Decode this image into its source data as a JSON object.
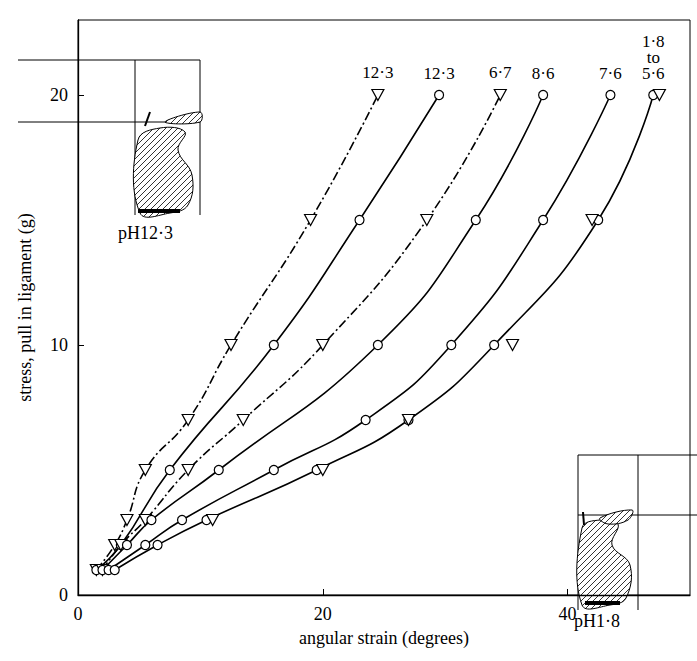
{
  "chart_data": {
    "type": "line",
    "x_label": "angular strain (degrees)",
    "y_label": "stress, pull in ligament (g)",
    "xlim": [
      0,
      50
    ],
    "xticks": [
      0,
      20,
      40
    ],
    "ylim": [
      0,
      23
    ],
    "yticks": [
      0,
      10,
      20
    ],
    "grid": false,
    "color": "#000000",
    "series": [
      {
        "name": "12·3",
        "marker": "triangle",
        "line_style": "dashdot",
        "x": [
          1.5,
          3,
          4,
          5.5,
          9,
          12.5,
          19,
          24.5
        ],
        "values": [
          1,
          2,
          3,
          5,
          7,
          10,
          15,
          20
        ]
      },
      {
        "name": "12·3",
        "marker": "circle",
        "line_style": "solid",
        "x": [
          1.5,
          3.5,
          7.5,
          16,
          23,
          29.5
        ],
        "values": [
          1,
          2,
          5,
          10,
          15,
          20
        ]
      },
      {
        "name": "6·7",
        "marker": "triangle",
        "line_style": "dashdot",
        "x": [
          2,
          3.5,
          5.5,
          9,
          13.5,
          20,
          28.5,
          34.5
        ],
        "values": [
          1,
          2,
          3,
          5,
          7,
          10,
          15,
          20
        ]
      },
      {
        "name": "8·6",
        "marker": "circle",
        "line_style": "solid",
        "x": [
          2,
          4,
          6,
          11.5,
          24.5,
          32.5,
          38
        ],
        "values": [
          1,
          2,
          3,
          5,
          10,
          15,
          20
        ]
      },
      {
        "name": "7·6",
        "marker": "circle",
        "line_style": "solid",
        "x": [
          2.5,
          5.5,
          8.5,
          16,
          23.5,
          30.5,
          38,
          43.5
        ],
        "values": [
          1,
          2,
          3,
          5,
          7,
          10,
          15,
          20
        ]
      },
      {
        "name": "1·8 to 5·6",
        "marker": "circle",
        "line_style": "solid",
        "x": [
          3,
          6.5,
          10.5,
          19.5,
          27,
          34,
          42.5,
          47
        ],
        "values": [
          1,
          2,
          3,
          5,
          7,
          10,
          15,
          20
        ]
      },
      {
        "marker": "triangle",
        "line_style": "none",
        "x": [
          11,
          20,
          27,
          35.5,
          42,
          47.5
        ],
        "values": [
          3,
          5,
          7,
          10,
          15,
          20
        ]
      }
    ],
    "annotations": [
      "pH12·3",
      "pH1·8"
    ]
  }
}
